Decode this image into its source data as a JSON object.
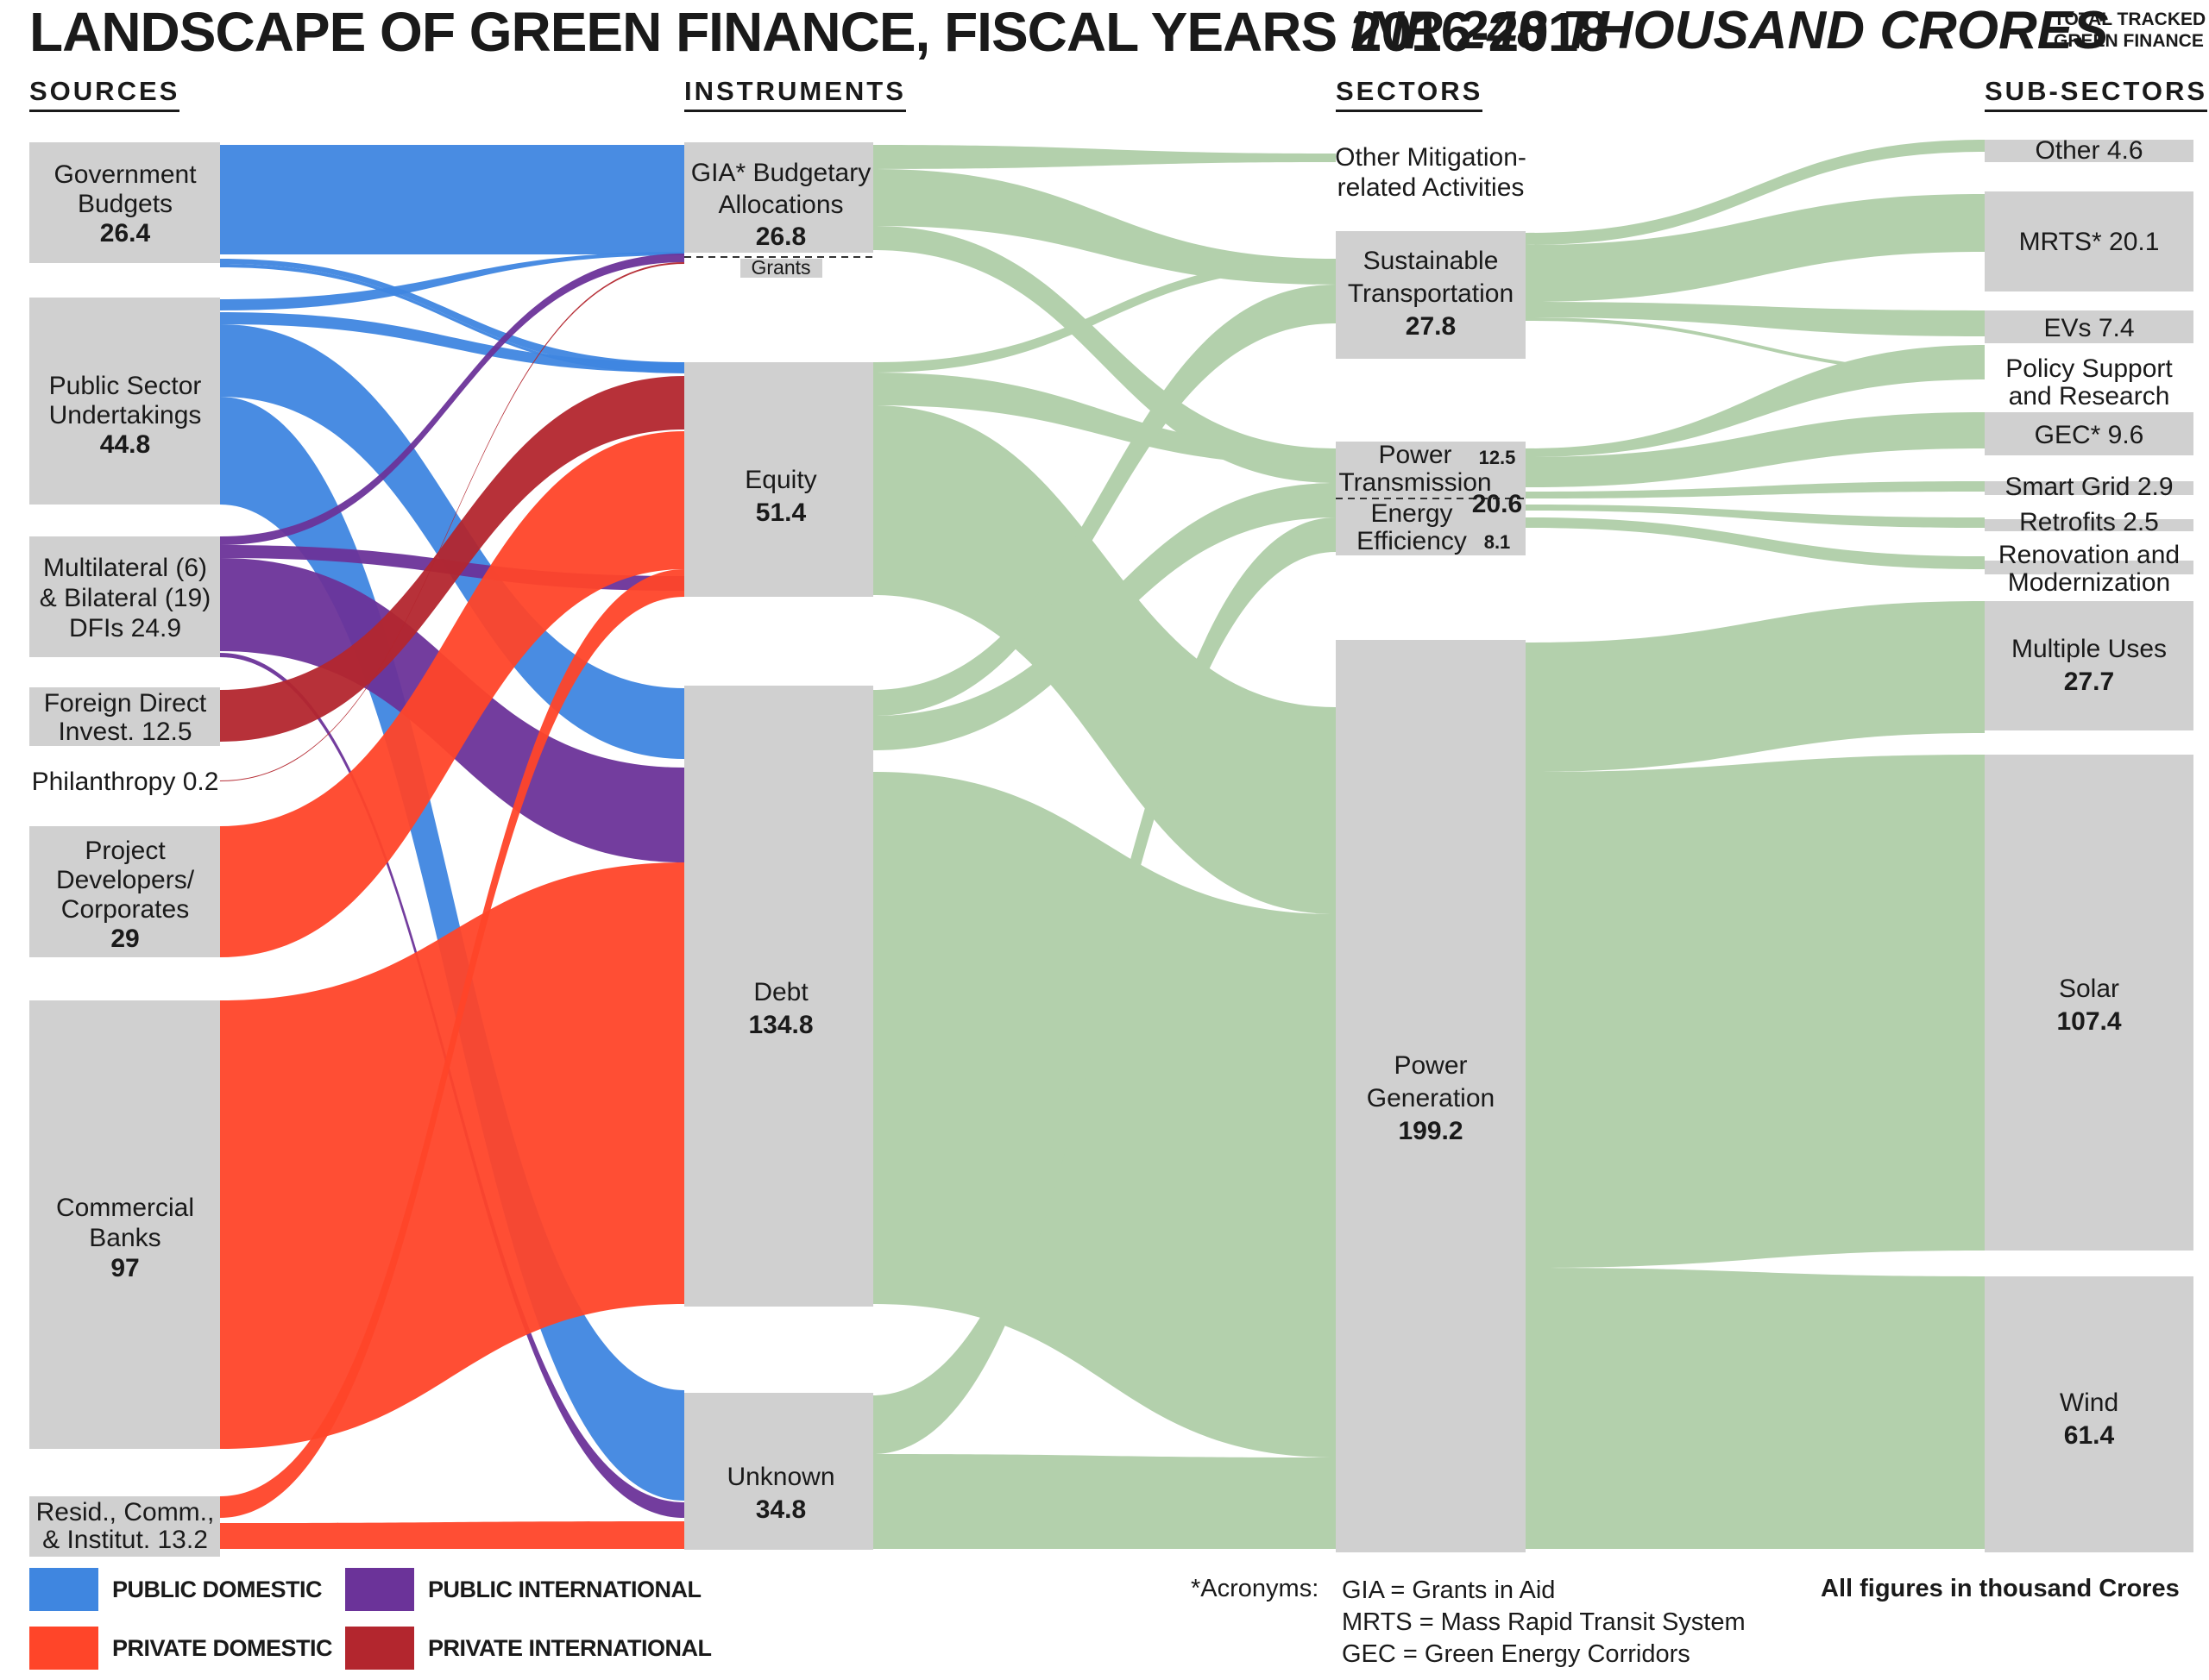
{
  "header": {
    "title": "LANDSCAPE OF GREEN FINANCE, FISCAL YEARS 2016-2018",
    "total": "INR 248 THOUSAND CRORES",
    "total_note_line1": "TOTAL TRACKED",
    "total_note_line2": "GREEN FINANCE"
  },
  "columns": {
    "sources": "SOURCES",
    "instruments": "INSTRUMENTS",
    "sectors": "SECTORS",
    "subsectors": "SUB-SECTORS"
  },
  "colors": {
    "public_domestic": "#3f86e0",
    "public_international": "#6b3399",
    "private_domestic": "#ff4529",
    "private_international": "#b3262e",
    "sector_flow": "#b3d0ac",
    "node": "#d0d0d0"
  },
  "nodes": {
    "sources": [
      {
        "id": "gov",
        "lines": [
          "Government",
          "Budgets"
        ],
        "value": "26.4"
      },
      {
        "id": "psu",
        "lines": [
          "Public Sector",
          "Undertakings"
        ],
        "value": "44.8"
      },
      {
        "id": "dfi",
        "lines": [
          "Multilateral (6)",
          "& Bilateral (19)",
          "DFIs 24.9"
        ],
        "value": ""
      },
      {
        "id": "fdi",
        "lines": [
          "Foreign Direct",
          "Invest. 12.5"
        ],
        "value": ""
      },
      {
        "id": "phil",
        "lines": [
          "Philanthropy 0.2"
        ],
        "value": ""
      },
      {
        "id": "proj",
        "lines": [
          "Project",
          "Developers/",
          "Corporates"
        ],
        "value": "29"
      },
      {
        "id": "bank",
        "lines": [
          "Commercial",
          "Banks"
        ],
        "value": "97"
      },
      {
        "id": "res",
        "lines": [
          "Resid., Comm.,",
          "& Institut. 13.2"
        ],
        "value": ""
      }
    ],
    "instruments": [
      {
        "id": "gia",
        "lines": [
          "GIA* Budgetary",
          "Allocations"
        ],
        "value": "26.8"
      },
      {
        "id": "grants",
        "lines": [
          "Grants"
        ],
        "value": ""
      },
      {
        "id": "equity",
        "lines": [
          "Equity"
        ],
        "value": "51.4"
      },
      {
        "id": "debt",
        "lines": [
          "Debt"
        ],
        "value": "134.8"
      },
      {
        "id": "unknown",
        "lines": [
          "Unknown"
        ],
        "value": "34.8"
      }
    ],
    "sectors": [
      {
        "id": "other_mit",
        "lines": [
          "Other Mitigation-",
          "related Activities"
        ],
        "value": ""
      },
      {
        "id": "transport",
        "lines": [
          "Sustainable",
          "Transportation"
        ],
        "value": "27.8"
      },
      {
        "id": "pt_ee",
        "value": "20.6",
        "pt_label": "Power",
        "pt_label2": "Transmission",
        "pt_value": "12.5",
        "ee_label": "Energy",
        "ee_label2": "Efficiency",
        "ee_value": "8.1"
      },
      {
        "id": "powergen",
        "lines": [
          "Power",
          "Generation"
        ],
        "value": "199.2"
      }
    ],
    "subsectors": [
      {
        "id": "other",
        "lines": [
          "Other 4.6"
        ]
      },
      {
        "id": "mrts",
        "lines": [
          "MRTS* 20.1"
        ]
      },
      {
        "id": "evs",
        "lines": [
          "EVs 7.4"
        ]
      },
      {
        "id": "policy",
        "lines": [
          "Policy Support",
          "and Research"
        ]
      },
      {
        "id": "gec",
        "lines": [
          "GEC* 9.6"
        ]
      },
      {
        "id": "smart",
        "lines": [
          "Smart Grid 2.9"
        ]
      },
      {
        "id": "retro",
        "lines": [
          "Retrofits 2.5"
        ]
      },
      {
        "id": "renov",
        "lines": [
          "Renovation and",
          "Modernization"
        ]
      },
      {
        "id": "multi",
        "lines": [
          "Multiple Uses"
        ],
        "value": "27.7"
      },
      {
        "id": "solar",
        "lines": [
          "Solar"
        ],
        "value": "107.4"
      },
      {
        "id": "wind",
        "lines": [
          "Wind"
        ],
        "value": "61.4"
      }
    ]
  },
  "legend": [
    {
      "label": "PUBLIC DOMESTIC",
      "color": "#3f86e0"
    },
    {
      "label": "PUBLIC INTERNATIONAL",
      "color": "#6b3399"
    },
    {
      "label": "PRIVATE DOMESTIC",
      "color": "#ff4529"
    },
    {
      "label": "PRIVATE INTERNATIONAL",
      "color": "#b3262e"
    }
  ],
  "acronyms": {
    "label": "*Acronyms:",
    "lines": [
      "GIA = Grants in Aid",
      "MRTS = Mass Rapid Transit System",
      "GEC = Green Energy Corridors"
    ]
  },
  "units_note": "All figures in thousand Crores"
}
